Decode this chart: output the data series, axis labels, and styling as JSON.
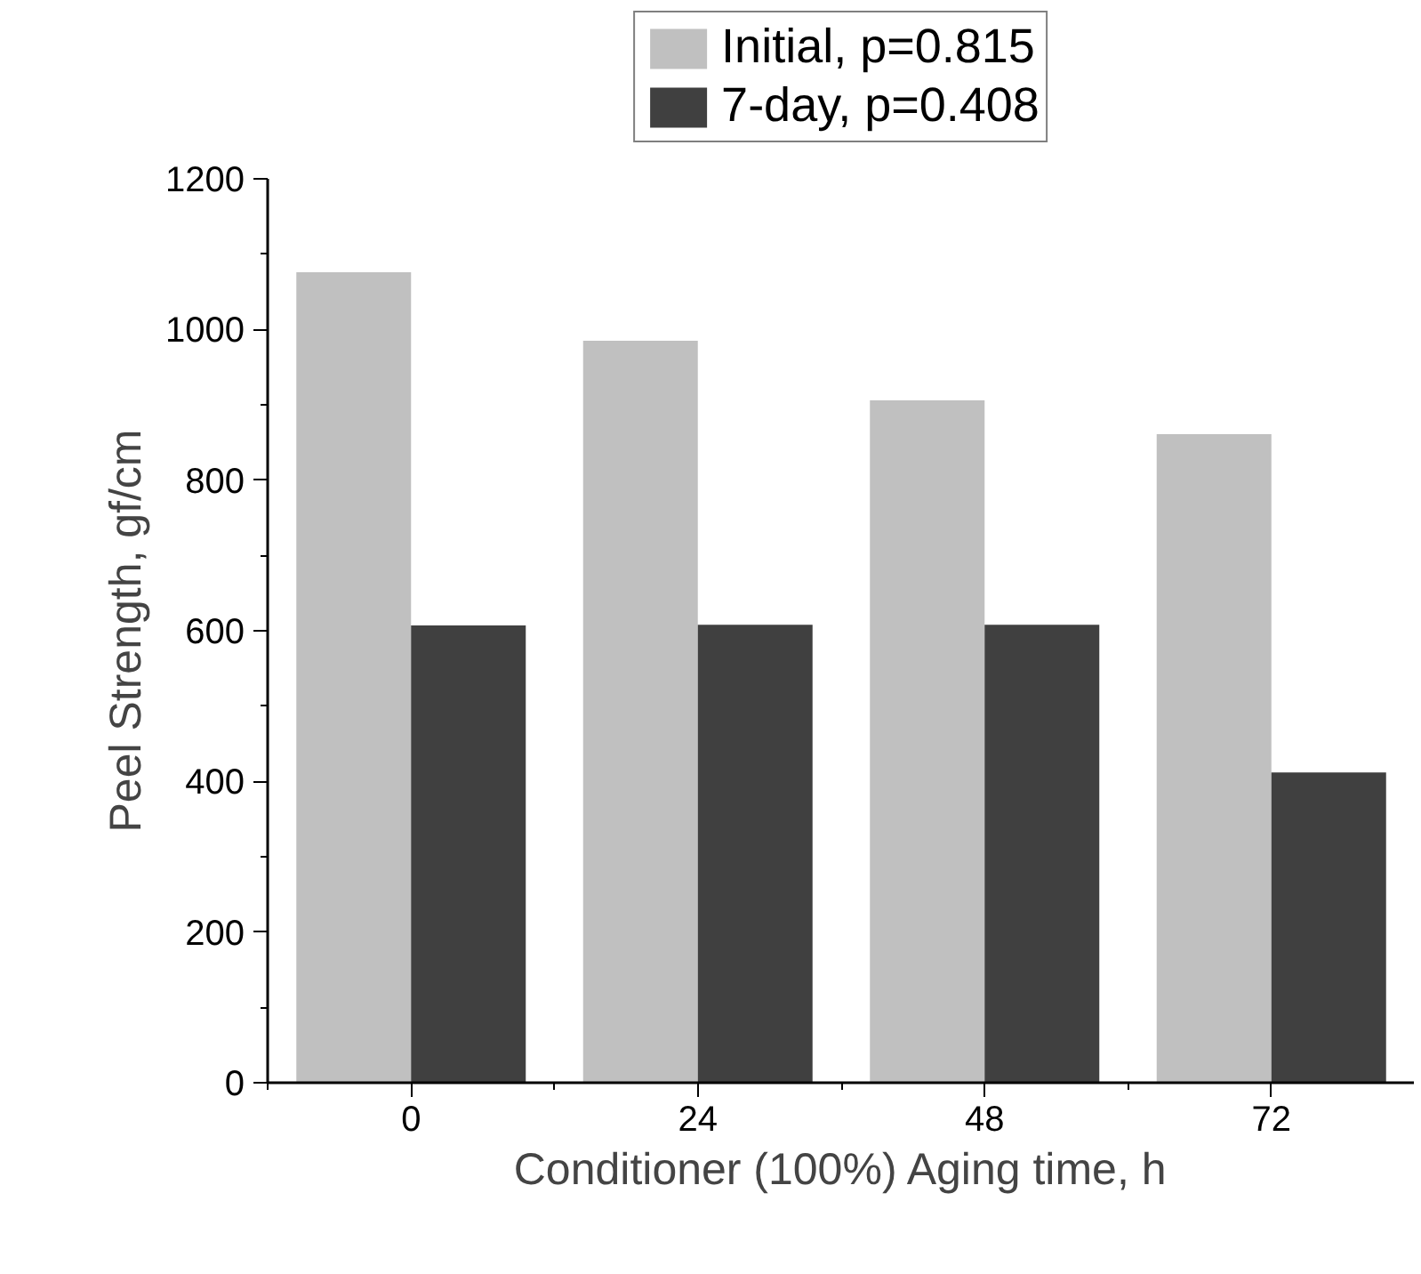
{
  "chart_data": {
    "type": "bar",
    "xlabel": "Conditioner (100%) Aging time, h",
    "ylabel": "Peel Strength, gf/cm",
    "categories": [
      "0",
      "24",
      "48",
      "72"
    ],
    "series": [
      {
        "name": "Initial, p=0.815",
        "color": "#c0c0c0",
        "values": [
          1076,
          985,
          906,
          861
        ]
      },
      {
        "name": "7-day, p=0.408",
        "color": "#404040",
        "values": [
          607,
          608,
          608,
          412
        ]
      }
    ],
    "ylim": [
      0,
      1200
    ],
    "yticks": [
      0,
      200,
      400,
      600,
      800,
      1000,
      1200
    ],
    "grid": false,
    "legend": "top"
  }
}
